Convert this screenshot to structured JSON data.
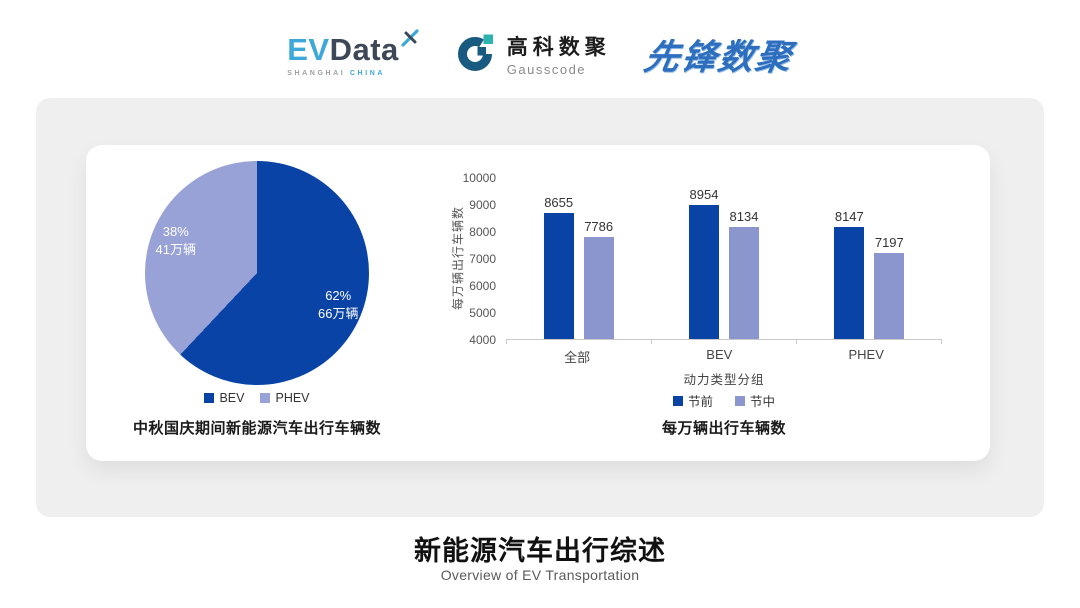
{
  "header": {
    "evdata": {
      "part1": "EV",
      "part2": "Data",
      "tagline_left": "SHANGHAI",
      "tagline_right": "CHINA"
    },
    "gausscode": {
      "name_cn": "高科数聚",
      "name_en": "Gausscode"
    },
    "pioneer": {
      "name": "先锋数聚"
    }
  },
  "colors": {
    "dark_blue": "#0843a5",
    "light_blue_bar": "#8b95ce",
    "light_blue_pie": "#98a2d6",
    "panel_gray": "#efefef",
    "evdata_cyan": "#3ea8d8",
    "evdata_dark": "#3c4858",
    "gausscode_blue": "#185a80",
    "gausscode_teal": "#2cb3b0",
    "pioneer_blue": "#2e6ebe"
  },
  "chart_data": [
    {
      "type": "pie",
      "title": "中秋国庆期间新能源汽车出行车辆数",
      "start_angle_deg": 0,
      "legend_position": "bottom",
      "slices": [
        {
          "label": "BEV",
          "percent": 62,
          "percent_label": "62%",
          "value_label": "66万辆",
          "color": "#0843a5"
        },
        {
          "label": "PHEV",
          "percent": 38,
          "percent_label": "38%",
          "value_label": "41万辆",
          "color": "#98a2d6"
        }
      ]
    },
    {
      "type": "bar",
      "title": "每万辆出行车辆数",
      "categories": [
        "全部",
        "BEV",
        "PHEV"
      ],
      "series": [
        {
          "name": "节前",
          "values": [
            8655,
            8954,
            8147
          ],
          "color": "#0843a5"
        },
        {
          "name": "节中",
          "values": [
            7786,
            8134,
            7197
          ],
          "color": "#8b95ce"
        }
      ],
      "xlabel": "动力类型分组",
      "ylabel": "每万辆出行车辆数",
      "ylim": [
        4000,
        10000
      ],
      "yticks": [
        4000,
        5000,
        6000,
        7000,
        8000,
        9000,
        10000
      ],
      "grid": false,
      "legend_position": "bottom"
    }
  ],
  "footer": {
    "title": "新能源汽车出行综述",
    "subtitle": "Overview of EV Transportation"
  }
}
